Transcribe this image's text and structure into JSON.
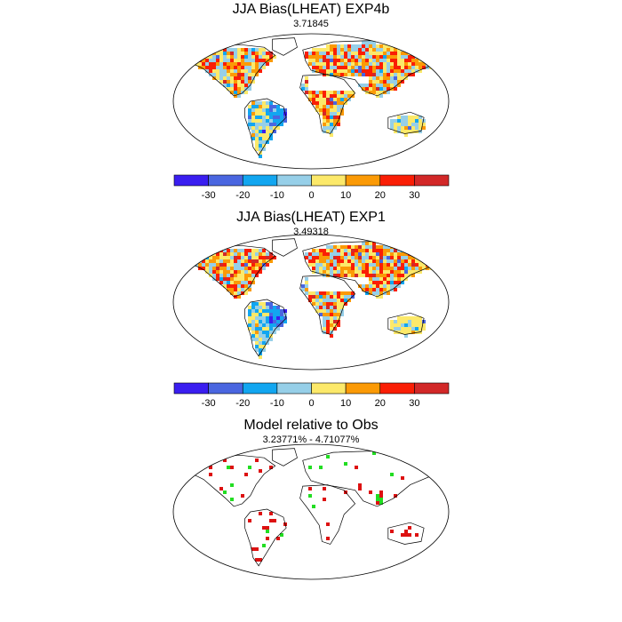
{
  "panels": [
    {
      "title": "JJA Bias(LHEAT) EXP4b",
      "subtitle": "3.71845",
      "map": "bias_exp4b",
      "colorbar": true
    },
    {
      "title": "JJA Bias(LHEAT) EXP1",
      "subtitle": "3.49318",
      "map": "bias_exp1",
      "colorbar": true
    },
    {
      "title": "Model relative to Obs",
      "subtitle": "3.23771% - 4.71077%",
      "map": "relative",
      "colorbar": false
    }
  ],
  "colorbar": {
    "colors": [
      "#3a1ef0",
      "#4a66e0",
      "#12a6f0",
      "#96cfe8",
      "#fce96a",
      "#fb9a06",
      "#fa1e05",
      "#d22828"
    ],
    "tick_labels": [
      "-30",
      "-20",
      "-10",
      "0",
      "10",
      "20",
      "30"
    ]
  },
  "relative_colors": [
    "#22dd22",
    "#dd1111"
  ],
  "projection": "robinson"
}
